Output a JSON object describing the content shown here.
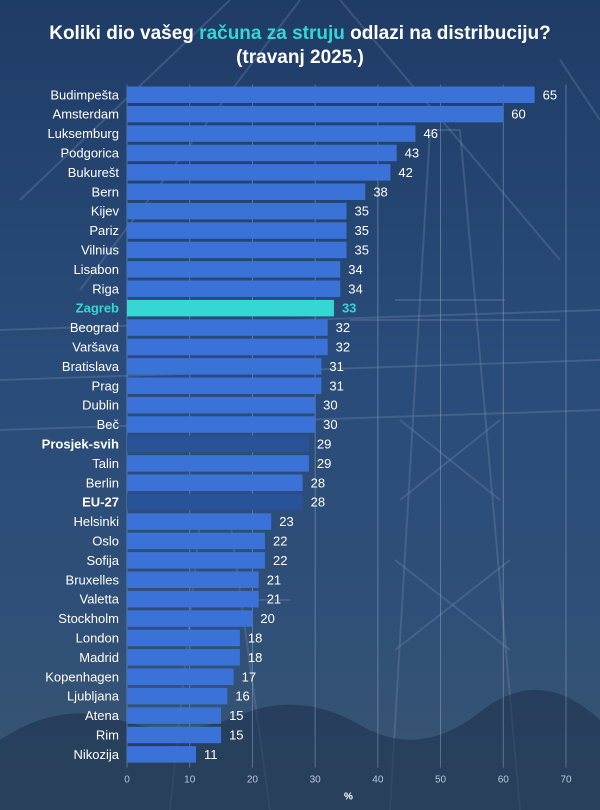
{
  "title": {
    "part1": "Koliki dio vašeg ",
    "highlight": "računa za struju",
    "part2": " odlazi na distribuciju?",
    "line2": "(travanj 2025.)"
  },
  "colors": {
    "bar": "#3a72d8",
    "bar_highlight": "#35d6d6",
    "bar_average": "#2a5298",
    "label": "#ffffff",
    "highlight_text": "#35d6d6"
  },
  "chart_data": {
    "type": "bar",
    "orientation": "horizontal",
    "categories": [
      "Budimpešta",
      "Amsterdam",
      "Luksemburg",
      "Podgorica",
      "Bukurešt",
      "Bern",
      "Kijev",
      "Pariz",
      "Vilnius",
      "Lisabon",
      "Riga",
      "Zagreb",
      "Beograd",
      "Varšava",
      "Bratislava",
      "Prag",
      "Dublin",
      "Beč",
      "Prosjek-svih",
      "Talin",
      "Berlin",
      "EU-27",
      "Helsinki",
      "Oslo",
      "Sofija",
      "Bruxelles",
      "Valetta",
      "Stockholm",
      "London",
      "Madrid",
      "Kopenhagen",
      "Ljubljana",
      "Atena",
      "Rim",
      "Nikozija"
    ],
    "values": [
      65,
      60,
      46,
      43,
      42,
      38,
      35,
      35,
      35,
      34,
      34,
      33,
      32,
      32,
      31,
      31,
      30,
      30,
      29,
      29,
      28,
      28,
      23,
      22,
      22,
      21,
      21,
      20,
      18,
      18,
      17,
      16,
      15,
      15,
      11
    ],
    "highlight": [
      "Zagreb"
    ],
    "averages": [
      "Prosjek-svih",
      "EU-27"
    ],
    "xlabel": "%",
    "xlim": [
      0,
      70
    ],
    "xticks": [
      0,
      10,
      20,
      30,
      40,
      50,
      60,
      70
    ],
    "grid": true
  }
}
